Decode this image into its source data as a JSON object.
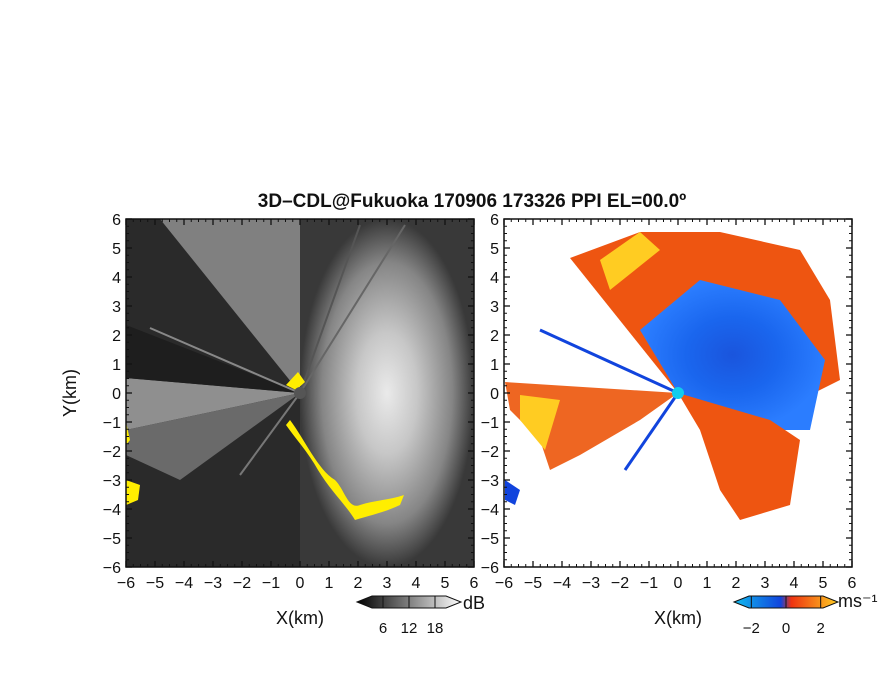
{
  "title": "3D–CDL@Fukuoka 170906 173326 PPI EL=00.0º",
  "chart_data": [
    {
      "type": "heatmap",
      "panel": "reflectivity",
      "xlabel": "X(km)",
      "ylabel": "Y(km)",
      "xlim": [
        -6,
        6
      ],
      "ylim": [
        -6,
        6
      ],
      "xticks": [
        "−6",
        "−5",
        "−4",
        "−3",
        "−2",
        "−1",
        "0",
        "1",
        "2",
        "3",
        "4",
        "5",
        "6"
      ],
      "yticks": [
        "6",
        "5",
        "4",
        "3",
        "2",
        "1",
        "0",
        "−1",
        "−2",
        "−3",
        "−4",
        "−5",
        "−6"
      ],
      "colorbar": {
        "unit": "dB",
        "ticks": [
          6,
          12,
          18
        ],
        "range": [
          0,
          24
        ],
        "colors": [
          "#000000",
          "#ffffff"
        ]
      },
      "highlight_color": "#ffee00"
    },
    {
      "type": "heatmap",
      "panel": "doppler-velocity",
      "xlabel": "X(km)",
      "ylabel": "",
      "xlim": [
        -6,
        6
      ],
      "ylim": [
        -6,
        6
      ],
      "xticks": [
        "−6",
        "−5",
        "−4",
        "−3",
        "−2",
        "−1",
        "0",
        "1",
        "2",
        "3",
        "4",
        "5",
        "6"
      ],
      "yticks": [
        "6",
        "5",
        "4",
        "3",
        "2",
        "1",
        "0",
        "−1",
        "−2",
        "−3",
        "−4",
        "−5",
        "−6"
      ],
      "colorbar": {
        "unit": "ms⁻¹",
        "ticks": [
          -2,
          0,
          2
        ],
        "range": [
          -3,
          3
        ],
        "colors": [
          "#11bbee",
          "#1144dd",
          "#ee3311",
          "#ffcc22"
        ]
      },
      "center_color": "#11ccee"
    }
  ]
}
